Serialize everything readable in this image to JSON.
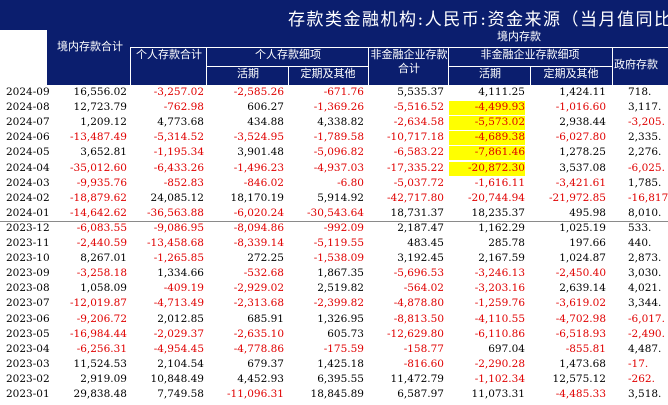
{
  "title": "存款类金融机构:人民币:资金来源（当月值同比",
  "header": {
    "col_total": "境内存款合计",
    "group_inner": "境内存款",
    "col_personal_total": "个人存款合计",
    "group_personal": "个人存款细项",
    "col_personal_current": "活期",
    "col_personal_time": "定期及其他",
    "col_nonfin_total": "非金融企业存款合计",
    "group_nonfin": "非金融企业存款细项",
    "col_nonfin_current": "活期",
    "col_nonfin_time": "定期及其他",
    "col_gov": "政府存款"
  },
  "rows": [
    {
      "date": "2024-09",
      "v": [
        "16,556.02",
        "-3,257.02",
        "-2,585.26",
        "-671.76",
        "5,535.37",
        "4,111.25",
        "1,424.11",
        "718."
      ]
    },
    {
      "date": "2024-08",
      "v": [
        "12,723.79",
        "-762.98",
        "606.27",
        "-1,369.26",
        "-5,516.52",
        "-4,499.93",
        "-1,016.60",
        "3,117."
      ]
    },
    {
      "date": "2024-07",
      "v": [
        "1,209.12",
        "4,773.68",
        "434.88",
        "4,338.82",
        "-2,634.58",
        "-5,573.02",
        "2,938.44",
        "-3,205."
      ]
    },
    {
      "date": "2024-06",
      "v": [
        "-13,487.49",
        "-5,314.52",
        "-3,524.95",
        "-1,789.58",
        "-10,717.18",
        "-4,689.38",
        "-6,027.80",
        "2,335."
      ]
    },
    {
      "date": "2024-05",
      "v": [
        "3,652.81",
        "-1,195.34",
        "3,901.48",
        "-5,096.82",
        "-6,583.22",
        "-7,861.46",
        "1,278.25",
        "2,276."
      ]
    },
    {
      "date": "2024-04",
      "v": [
        "-35,012.60",
        "-6,433.26",
        "-1,496.23",
        "-4,937.03",
        "-17,335.22",
        "-20,872.30",
        "3,537.08",
        "-6,025."
      ]
    },
    {
      "date": "2024-03",
      "v": [
        "-9,935.76",
        "-852.83",
        "-846.02",
        "-6.80",
        "-5,037.72",
        "-1,616.11",
        "-3,421.61",
        "1,785."
      ]
    },
    {
      "date": "2024-02",
      "v": [
        "-18,879.62",
        "24,085.12",
        "18,170.19",
        "5,914.92",
        "-42,717.80",
        "-20,744.94",
        "-21,972.85",
        "-16,817."
      ]
    },
    {
      "date": "2024-01",
      "v": [
        "-14,642.62",
        "-36,563.88",
        "-6,020.24",
        "-30,543.64",
        "18,731.37",
        "18,235.37",
        "495.98",
        "8,010."
      ]
    },
    {
      "date": "2023-12",
      "v": [
        "-6,083.55",
        "-9,086.95",
        "-8,094.86",
        "-992.09",
        "2,187.47",
        "1,162.29",
        "1,025.19",
        "533."
      ]
    },
    {
      "date": "2023-11",
      "v": [
        "-2,440.59",
        "-13,458.68",
        "-8,339.14",
        "-5,119.55",
        "483.45",
        "285.78",
        "197.66",
        "440."
      ]
    },
    {
      "date": "2023-10",
      "v": [
        "8,267.01",
        "-1,265.85",
        "272.25",
        "-1,538.09",
        "3,192.45",
        "2,167.59",
        "1,024.87",
        "2,873."
      ]
    },
    {
      "date": "2023-09",
      "v": [
        "-3,258.18",
        "1,334.66",
        "-532.68",
        "1,867.35",
        "-5,696.53",
        "-3,246.13",
        "-2,450.40",
        "3,030."
      ]
    },
    {
      "date": "2023-08",
      "v": [
        "1,058.09",
        "-409.19",
        "-2,929.02",
        "2,519.82",
        "-564.02",
        "-3,203.16",
        "2,639.14",
        "4,021."
      ]
    },
    {
      "date": "2023-07",
      "v": [
        "-12,019.87",
        "-4,713.49",
        "-2,313.68",
        "-2,399.82",
        "-4,878.80",
        "-1,259.76",
        "-3,619.02",
        "3,344."
      ]
    },
    {
      "date": "2023-06",
      "v": [
        "-9,206.72",
        "2,012.85",
        "685.91",
        "1,326.95",
        "-8,813.50",
        "-4,110.55",
        "-4,702.98",
        "-6,017."
      ]
    },
    {
      "date": "2023-05",
      "v": [
        "-16,984.44",
        "-2,029.37",
        "-2,635.10",
        "605.73",
        "-12,629.80",
        "-6,110.86",
        "-6,518.93",
        "-2,490."
      ]
    },
    {
      "date": "2023-04",
      "v": [
        "-6,256.31",
        "-4,954.45",
        "-4,778.86",
        "-175.59",
        "-158.77",
        "697.04",
        "-855.81",
        "4,487."
      ]
    },
    {
      "date": "2023-03",
      "v": [
        "11,524.53",
        "2,104.54",
        "679.37",
        "1,425.18",
        "-816.60",
        "-2,290.28",
        "1,473.68",
        "-17."
      ]
    },
    {
      "date": "2023-02",
      "v": [
        "2,919.09",
        "10,848.49",
        "4,452.93",
        "6,395.55",
        "11,472.79",
        "-1,102.34",
        "12,575.12",
        "-262."
      ]
    },
    {
      "date": "2023-01",
      "v": [
        "29,838.48",
        "7,749.58",
        "-11,096.31",
        "18,845.89",
        "6,587.97",
        "11,073.31",
        "-4,485.33",
        "3,518."
      ]
    }
  ],
  "highlighted_column_index": 5,
  "highlighted_rows": [
    "2024-08",
    "2024-07",
    "2024-06",
    "2024-05",
    "2024-04"
  ],
  "colors": {
    "header_bg": "#0b1e6e",
    "negative": "#e00000",
    "highlight": "#ffff00"
  }
}
